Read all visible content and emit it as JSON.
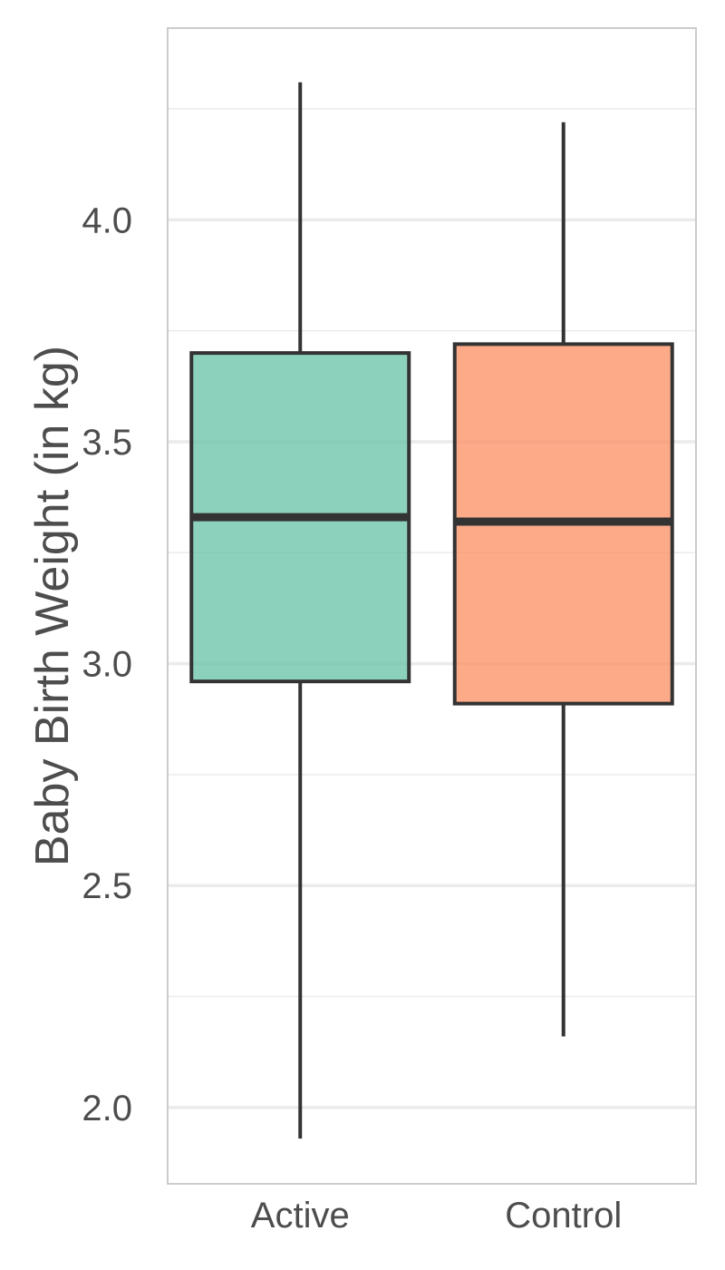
{
  "chart_data": {
    "type": "box",
    "ylabel": "Baby Birth Weight (in kg)",
    "xlabel": "",
    "categories": [
      "Active",
      "Control"
    ],
    "ylim": [
      1.83,
      4.43
    ],
    "y_ticks": [
      2.0,
      2.5,
      3.0,
      3.5,
      4.0
    ],
    "y_tick_labels": [
      "2.0",
      "2.5",
      "3.0",
      "3.5",
      "4.0"
    ],
    "y_minor_ticks": [
      2.25,
      2.75,
      3.25,
      3.75,
      4.25
    ],
    "grid": true,
    "boxes": [
      {
        "category": "Active",
        "min": 1.93,
        "q1": 2.96,
        "median": 3.33,
        "q3": 3.7,
        "max": 4.31,
        "color": "#66c2a5"
      },
      {
        "category": "Control",
        "min": 2.16,
        "q1": 2.91,
        "median": 3.32,
        "q3": 3.72,
        "max": 4.22,
        "color": "#fc8d62"
      }
    ]
  },
  "colors": {
    "panel_border": "#cccccc",
    "grid_major": "#ebebeb",
    "grid_minor": "#ebebeb",
    "box_outline": "#333333",
    "text": "#4d4d4d"
  }
}
